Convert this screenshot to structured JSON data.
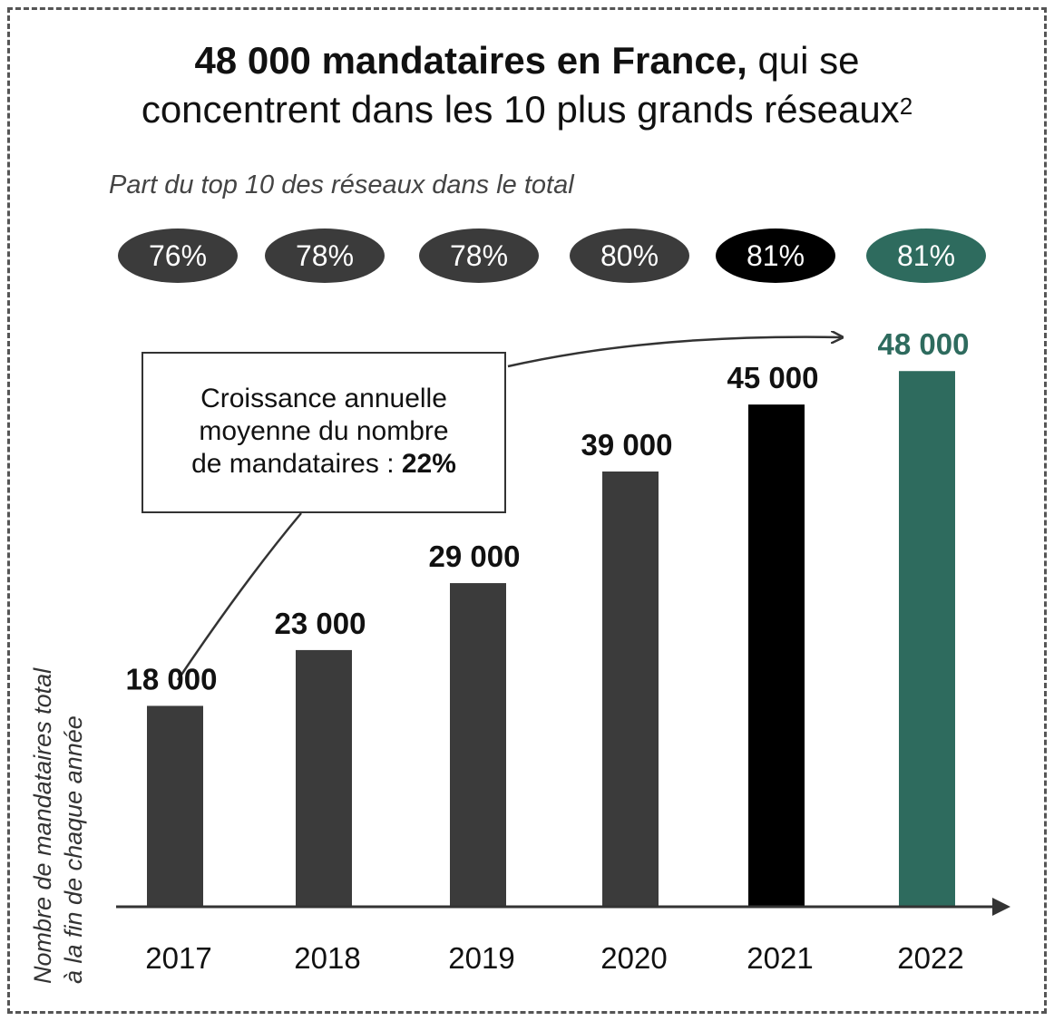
{
  "chart_data": {
    "type": "bar",
    "title_bold": "48 000 mandataires en France,",
    "title_rest_1": " qui se",
    "title_line2": "concentrent dans les 10 plus grands réseaux",
    "title_sup": "2",
    "subtitle": "Part du top 10 des réseaux dans le total",
    "ylabel_line1": "Nombre de mandataires total",
    "ylabel_line2": "à la fin de chaque année",
    "categories": [
      "2017",
      "2018",
      "2019",
      "2020",
      "2021",
      "2022"
    ],
    "values": [
      18000,
      23000,
      29000,
      39000,
      45000,
      48000
    ],
    "value_labels": [
      "18 000",
      "23 000",
      "29 000",
      "39 000",
      "45 000",
      "48 000"
    ],
    "top10_share": [
      "76%",
      "78%",
      "78%",
      "80%",
      "81%",
      "81%"
    ],
    "bar_colors": [
      "#3b3b3b",
      "#3b3b3b",
      "#3b3b3b",
      "#3b3b3b",
      "#000000",
      "#2e6b5e"
    ],
    "label_colors": [
      "#111111",
      "#111111",
      "#111111",
      "#111111",
      "#111111",
      "#2e6b5e"
    ],
    "ylim": [
      0,
      52000
    ],
    "grid": false,
    "annotation": {
      "line1": "Croissance annuelle",
      "line2": "moyenne du nombre",
      "line3": "de mandataires : ",
      "value": "22%"
    }
  }
}
